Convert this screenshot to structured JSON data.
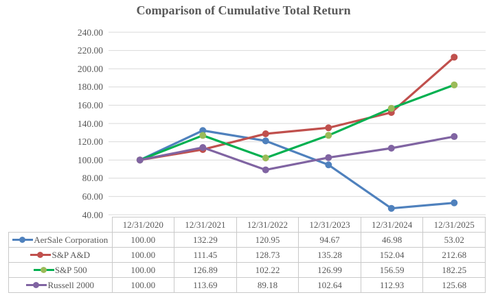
{
  "title": "Comparison of Cumulative Total Return",
  "chart_data": {
    "type": "line",
    "title": "Comparison of Cumulative Total Return",
    "categories": [
      "12/31/2020",
      "12/31/2021",
      "12/31/2022",
      "12/31/2023",
      "12/31/2024",
      "12/31/2025"
    ],
    "series": [
      {
        "name": "AerSale Corporation",
        "color": "#4f81bd",
        "marker_color": "#4f81bd",
        "values": [
          100.0,
          132.29,
          120.95,
          94.67,
          46.98,
          53.02
        ]
      },
      {
        "name": "S&P A&D",
        "color": "#c0504d",
        "marker_color": "#c0504d",
        "values": [
          100.0,
          111.45,
          128.73,
          135.28,
          152.04,
          212.68
        ]
      },
      {
        "name": "S&P 500",
        "color": "#00b050",
        "marker_color": "#9bbb59",
        "values": [
          100.0,
          126.89,
          102.22,
          126.99,
          156.59,
          182.25
        ]
      },
      {
        "name": "Russell 2000",
        "color": "#8064a2",
        "marker_color": "#8064a2",
        "values": [
          100.0,
          113.69,
          89.18,
          102.64,
          112.93,
          125.68
        ]
      }
    ],
    "xlabel": "",
    "ylabel": "",
    "ylim": [
      40,
      240
    ],
    "ytick_step": 20,
    "yticks": [
      "240.00",
      "220.00",
      "200.00",
      "180.00",
      "160.00",
      "140.00",
      "120.00",
      "100.00",
      "80.00",
      "60.00",
      "40.00"
    ],
    "grid": true,
    "gridline_color": "#d9d9d9",
    "legend_position": "data-table-left",
    "text_color": "#595959",
    "table_border_color": "#c9c9c9",
    "value_decimals": 2
  }
}
